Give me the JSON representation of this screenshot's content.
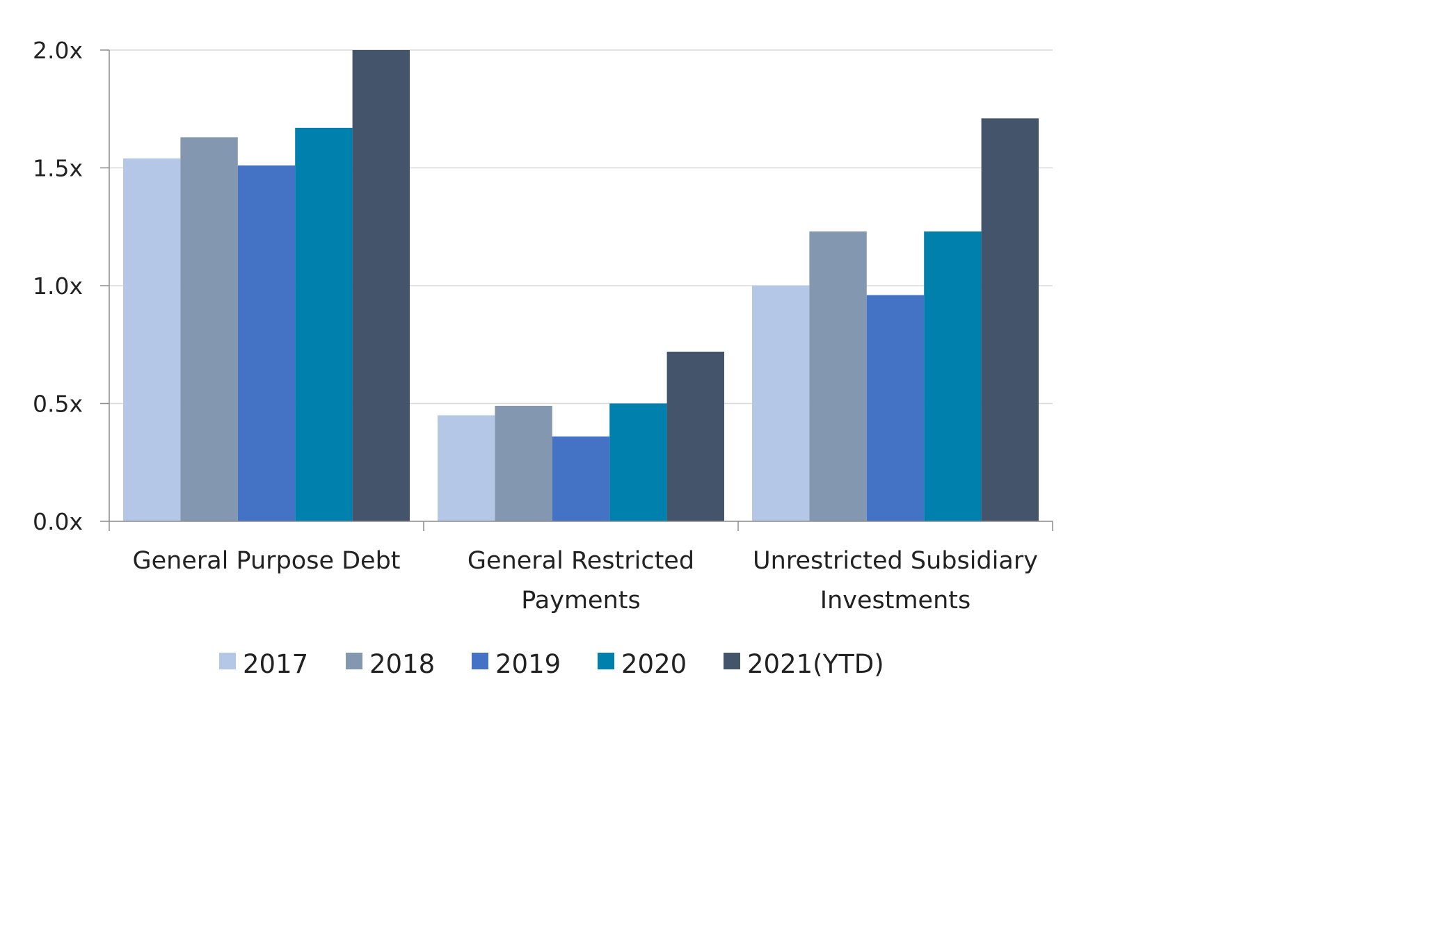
{
  "chart_data": {
    "type": "bar",
    "title": "",
    "xlabel": "",
    "ylabel": "",
    "ylim": [
      0,
      2.0
    ],
    "yticks": [
      {
        "value": 0.0,
        "label": "0.0x"
      },
      {
        "value": 0.5,
        "label": "0.5x"
      },
      {
        "value": 1.0,
        "label": "1.0x"
      },
      {
        "value": 1.5,
        "label": "1.5x"
      },
      {
        "value": 2.0,
        "label": "2.0x"
      }
    ],
    "categories": [
      {
        "name": "General Purpose Debt",
        "lines": [
          "General Purpose Debt"
        ]
      },
      {
        "name": "General Restricted Payments",
        "lines": [
          "General Restricted",
          "Payments"
        ]
      },
      {
        "name": "Unrestricted Subsidiary Investments",
        "lines": [
          "Unrestricted Subsidiary",
          "Investments"
        ]
      }
    ],
    "series": [
      {
        "name": "2017",
        "color": "#b4c7e7",
        "values": [
          1.54,
          0.45,
          1.0
        ]
      },
      {
        "name": "2018",
        "color": "#8497b0",
        "values": [
          1.63,
          0.49,
          1.23
        ]
      },
      {
        "name": "2019",
        "color": "#4472c4",
        "values": [
          1.51,
          0.36,
          0.96
        ]
      },
      {
        "name": "2020",
        "color": "#0080ad",
        "values": [
          1.67,
          0.5,
          1.23
        ]
      },
      {
        "name": "2021(YTD)",
        "color": "#44546a",
        "values": [
          2.0,
          0.72,
          1.71
        ]
      }
    ],
    "grid": true,
    "legend_position": "bottom"
  }
}
